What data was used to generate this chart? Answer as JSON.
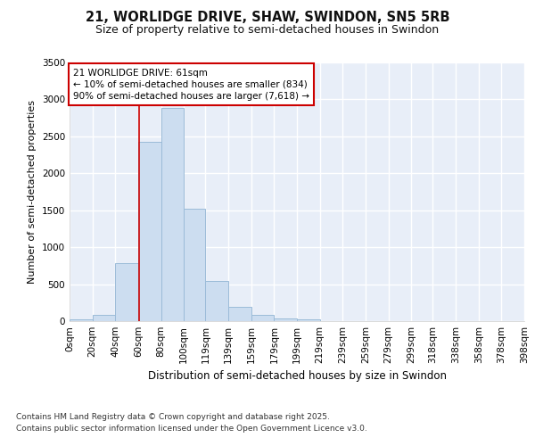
{
  "title_line1": "21, WORLIDGE DRIVE, SHAW, SWINDON, SN5 5RB",
  "title_line2": "Size of property relative to semi-detached houses in Swindon",
  "xlabel": "Distribution of semi-detached houses by size in Swindon",
  "ylabel": "Number of semi-detached properties",
  "footer": "Contains HM Land Registry data © Crown copyright and database right 2025.\nContains public sector information licensed under the Open Government Licence v3.0.",
  "bar_edges": [
    0,
    20,
    40,
    60,
    80,
    100,
    119,
    139,
    159,
    179,
    199,
    219,
    239,
    259,
    279,
    299,
    318,
    338,
    358,
    378,
    398
  ],
  "bar_heights": [
    30,
    80,
    780,
    2430,
    2880,
    1520,
    540,
    190,
    90,
    40,
    20,
    5,
    0,
    0,
    0,
    0,
    0,
    0,
    0,
    0
  ],
  "bar_color": "#ccddf0",
  "bar_edge_color": "#9bbbd8",
  "red_line_x": 61,
  "red_line_color": "#cc0000",
  "annotation_text": "21 WORLIDGE DRIVE: 61sqm\n← 10% of semi-detached houses are smaller (834)\n90% of semi-detached houses are larger (7,618) →",
  "annotation_box_color": "#ffffff",
  "annotation_box_edge": "#cc0000",
  "ylim": [
    0,
    3500
  ],
  "yticks": [
    0,
    500,
    1000,
    1500,
    2000,
    2500,
    3000,
    3500
  ],
  "background_color": "#ffffff",
  "plot_bg_color": "#e8eef8",
  "grid_color": "#ffffff",
  "tick_label_size": 7.5,
  "title1_fontsize": 10.5,
  "title2_fontsize": 9,
  "xlabel_fontsize": 8.5,
  "ylabel_fontsize": 8,
  "footer_fontsize": 6.5
}
